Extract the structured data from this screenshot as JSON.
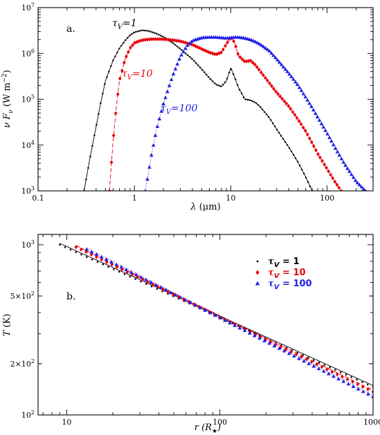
{
  "colors": {
    "tau1": "#000000",
    "tau10": "#e8000b",
    "tau100": "#1f1fe6"
  },
  "chart_data": [
    {
      "type": "scatter",
      "panel_label": "a.",
      "xlabel_symbol": "λ",
      "xlabel_unit": "(μm)",
      "ylabel_symbol": "ν F",
      "ylabel_sub": "ν",
      "ylabel_unit": "(W m",
      "ylabel_exp": "−2",
      "ylabel_close": ")",
      "x_scale": "log",
      "y_scale": "log",
      "xlim": [
        0.1,
        300
      ],
      "ylim": [
        1000,
        10000000
      ],
      "x_ticks": [
        0.1,
        1,
        10,
        100
      ],
      "x_tick_labels": [
        "0.1",
        "1",
        "10",
        "100"
      ],
      "y_ticks": [
        1000,
        10000,
        100000,
        1000000,
        10000000
      ],
      "y_tick_mantissa": [
        "10",
        "10",
        "10",
        "10",
        "10"
      ],
      "y_tick_exp": [
        "3",
        "4",
        "5",
        "6",
        "7"
      ],
      "annotations": [
        {
          "sym": "τ",
          "sub": "V",
          "text": "=1",
          "series": 0
        },
        {
          "sym": "τ",
          "sub": "V",
          "text": "=10",
          "series": 1
        },
        {
          "sym": "τ",
          "sub": "V",
          "text": "=100",
          "series": 2
        }
      ],
      "series": [
        {
          "marker": "square",
          "line": "solid",
          "x": [
            0.3,
            0.35,
            0.4,
            0.45,
            0.5,
            0.6,
            0.7,
            0.8,
            0.9,
            1.0,
            1.2,
            1.4,
            1.7,
            2.0,
            2.5,
            3.0,
            4.0,
            5.0,
            6.0,
            7.0,
            8.0,
            9.0,
            10.0,
            11.0,
            12.0,
            14.0,
            16.0,
            18.0,
            20.0,
            25.0,
            30.0,
            40.0,
            50.0,
            60.0,
            70.0
          ],
          "y": [
            1000,
            6000,
            25000,
            90000,
            250000,
            700000,
            1300000,
            1900000,
            2500000,
            2900000,
            3200000,
            3100000,
            2700000,
            2300000,
            1700000,
            1250000,
            750000,
            450000,
            290000,
            210000,
            190000,
            250000,
            480000,
            300000,
            180000,
            100000,
            95000,
            85000,
            70000,
            40000,
            22000,
            9000,
            4200,
            2000,
            1000
          ]
        },
        {
          "marker": "diamond",
          "line": "dashed",
          "x": [
            0.55,
            0.6,
            0.65,
            0.7,
            0.8,
            0.9,
            1.0,
            1.2,
            1.5,
            2.0,
            2.5,
            3.0,
            4.0,
            5.0,
            6.0,
            7.0,
            8.0,
            9.0,
            10.0,
            11.0,
            12.0,
            14.0,
            16.0,
            18.0,
            20.0,
            25.0,
            30.0,
            40.0,
            50.0,
            60.0,
            70.0,
            80.0,
            100.0,
            120.0,
            140.0
          ],
          "y": [
            1000,
            12000,
            70000,
            260000,
            750000,
            1300000,
            1700000,
            1950000,
            2050000,
            2050000,
            1950000,
            1850000,
            1550000,
            1250000,
            1050000,
            950000,
            1050000,
            1600000,
            2300000,
            1700000,
            900000,
            660000,
            700000,
            560000,
            420000,
            230000,
            140000,
            70000,
            36000,
            20000,
            11000,
            6500,
            3000,
            1600,
            1000
          ]
        },
        {
          "marker": "triangle",
          "line": "dotted",
          "x": [
            1.3,
            1.4,
            1.5,
            1.7,
            2.0,
            2.5,
            3.0,
            3.5,
            4.0,
            5.0,
            6.0,
            7.0,
            8.0,
            9.0,
            10.0,
            11.0,
            12.0,
            14.0,
            16.0,
            18.0,
            20.0,
            25.0,
            30.0,
            40.0,
            50.0,
            60.0,
            70.0,
            80.0,
            100.0,
            120.0,
            150.0,
            200.0,
            250.0
          ],
          "y": [
            1000,
            2500,
            6000,
            22000,
            80000,
            330000,
            850000,
            1450000,
            1900000,
            2200000,
            2250000,
            2250000,
            2200000,
            2150000,
            2200000,
            2250000,
            2250000,
            2150000,
            2000000,
            1800000,
            1600000,
            1150000,
            750000,
            370000,
            200000,
            110000,
            65000,
            40000,
            18000,
            9000,
            4000,
            1600,
            1000
          ]
        }
      ]
    },
    {
      "type": "scatter",
      "panel_label": "b.",
      "xlabel_symbol": "r",
      "xlabel_unit": "(R",
      "xlabel_sub": "★",
      "xlabel_close": ")",
      "ylabel_symbol": "T",
      "ylabel_unit": "(K)",
      "x_scale": "log",
      "y_scale": "log",
      "xlim": [
        6.5,
        1000
      ],
      "ylim": [
        100,
        1150
      ],
      "x_ticks": [
        10,
        100,
        1000
      ],
      "x_tick_labels": [
        "10",
        "100",
        "1000"
      ],
      "y_ticks": [
        100,
        200,
        500,
        1000
      ],
      "y_tick_mantissa": [
        "10",
        "2×10",
        "5×10",
        "10"
      ],
      "y_tick_exp": [
        "2",
        "2",
        "2",
        "3"
      ],
      "legend": [
        {
          "sym": "τ",
          "sub": "V",
          "text": " = 1",
          "series": 0
        },
        {
          "sym": "τ",
          "sub": "V",
          "text": " = 10",
          "series": 1
        },
        {
          "sym": "τ",
          "sub": "V",
          "text": " = 100",
          "series": 2
        }
      ],
      "legend_position": "top-right",
      "series": [
        {
          "marker": "square",
          "line": "solid",
          "T0": 1000,
          "r0": 9,
          "p": 0.4085,
          "rmax": 1000
        },
        {
          "marker": "diamond",
          "line": "dashed",
          "T0": 970,
          "r0": 11.5,
          "p": 0.4385,
          "rmax": 1000
        },
        {
          "marker": "triangle",
          "line": "dotted",
          "T0": 940,
          "r0": 13.5,
          "p": 0.463,
          "rmax": 1000
        }
      ]
    }
  ]
}
